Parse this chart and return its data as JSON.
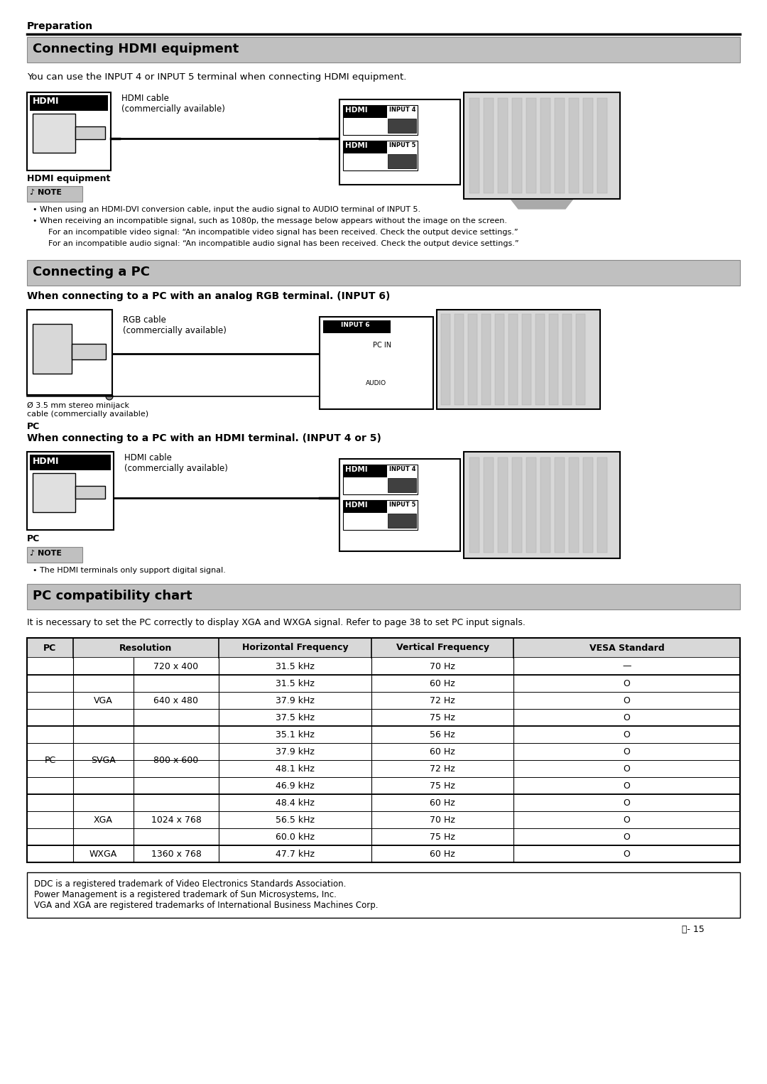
{
  "page_title": "Preparation",
  "section1_title": "Connecting HDMI equipment",
  "section1_intro": "You can use the INPUT 4 or INPUT 5 terminal when connecting HDMI equipment.",
  "hdmi_cable_label": "HDMI cable\n(commercially available)",
  "hdmi_equip_label": "HDMI equipment",
  "note1_bullets": [
    "• When using an HDMI-DVI conversion cable, input the audio signal to AUDIO terminal of INPUT 5.",
    "• When receiving an incompatible signal, such as 1080p, the message below appears without the image on the screen.",
    "    For an incompatible video signal: “An incompatible video signal has been received. Check the output device settings.”",
    "    For an incompatible audio signal: “An incompatible audio signal has been received. Check the output device settings.”"
  ],
  "section2_title": "Connecting a PC",
  "subsection2a_title": "When connecting to a PC with an analog RGB terminal. (INPUT 6)",
  "rgb_cable_label": "RGB cable\n(commercially available)",
  "minijack_label": "Ø 3.5 mm stereo minijack\ncable (commercially available)",
  "pc_label": "PC",
  "subsection2b_title": "When connecting to a PC with an HDMI terminal. (INPUT 4 or 5)",
  "hdmi_cable_label2": "HDMI cable\n(commercially available)",
  "pc_label2": "PC",
  "note2_bullets": [
    "• The HDMI terminals only support digital signal."
  ],
  "section3_title": "PC compatibility chart",
  "section3_intro": "It is necessary to set the PC correctly to display XGA and WXGA signal. Refer to page 38 to set PC input signals.",
  "horiz_freqs": [
    "31.5 kHz",
    "31.5 kHz",
    "37.9 kHz",
    "37.5 kHz",
    "35.1 kHz",
    "37.9 kHz",
    "48.1 kHz",
    "46.9 kHz",
    "48.4 kHz",
    "56.5 kHz",
    "60.0 kHz",
    "47.7 kHz"
  ],
  "vert_freqs": [
    "70 Hz",
    "60 Hz",
    "72 Hz",
    "75 Hz",
    "56 Hz",
    "60 Hz",
    "72 Hz",
    "75 Hz",
    "60 Hz",
    "70 Hz",
    "75 Hz",
    "60 Hz"
  ],
  "vesa_marks": [
    "—",
    "O",
    "O",
    "O",
    "O",
    "O",
    "O",
    "O",
    "O",
    "O",
    "O",
    "O"
  ],
  "type_merges": [
    [
      0,
      1,
      ""
    ],
    [
      1,
      4,
      "VGA"
    ],
    [
      4,
      8,
      "SVGA"
    ],
    [
      8,
      11,
      "XGA"
    ],
    [
      11,
      12,
      "WXGA"
    ]
  ],
  "res_merges": [
    [
      0,
      1,
      "720 x 400"
    ],
    [
      1,
      4,
      "640 x 480"
    ],
    [
      4,
      8,
      "800 x 600"
    ],
    [
      8,
      11,
      "1024 x 768"
    ],
    [
      11,
      12,
      "1360 x 768"
    ]
  ],
  "num_rows": 12,
  "footer_text": "DDC is a registered trademark of Video Electronics Standards Association.\nPower Management is a registered trademark of Sun Microsystems, Inc.\nVGA and XGA are registered trademarks of International Business Machines Corp.",
  "page_number": "ⓔ- 15",
  "bg_color": "#ffffff",
  "section_bg_color": "#c0c0c0",
  "table_hdr_bg": "#d8d8d8",
  "note_bg": "#c0c0c0"
}
